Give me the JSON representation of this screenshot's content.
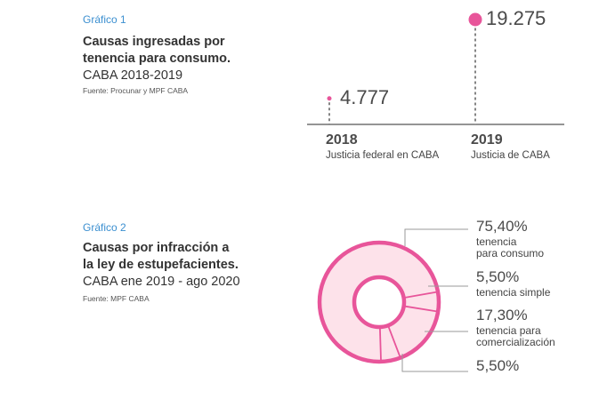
{
  "chart1": {
    "tag": "Gráfico 1",
    "title_lines": [
      "Causas ingresadas por",
      "tenencia para consumo."
    ],
    "subtitle": "CABA 2018-2019",
    "source": "Fuente: Procunar y MPF CABA"
  },
  "chart2": {
    "tag": "Gráfico 2",
    "title_lines": [
      "Causas por infracción a",
      "la ley de estupefacientes."
    ],
    "subtitle": "CABA ene 2019 - ago 2020",
    "source": "Fuente: MPF CABA",
    "slices": [
      {
        "pct": "75,40%",
        "label_lines": [
          "tenencia",
          "para consumo"
        ]
      },
      {
        "pct": "5,50%",
        "label_lines": [
          "tenencia simple"
        ]
      },
      {
        "pct": "17,30%",
        "label_lines": [
          "tenencia para",
          "comercialización"
        ]
      },
      {
        "pct": "5,50%",
        "label_lines": []
      }
    ]
  },
  "colors": {
    "accent": "#e8559a",
    "ring_fill": "#fde2ea",
    "axis": "#555555",
    "tag_blue": "#3b8fd0"
  },
  "chart_data": [
    {
      "type": "scatter",
      "title": "Causas ingresadas por tenencia para consumo.",
      "subtitle": "CABA 2018-2019",
      "categories": [
        "2018",
        "2019"
      ],
      "category_labels": [
        "Justicia federal en CABA",
        "Justicia de CABA"
      ],
      "values": [
        4777,
        19275
      ],
      "value_labels": [
        "4.777",
        "19.275"
      ],
      "ylim": [
        0,
        19275
      ],
      "grid": false
    },
    {
      "type": "pie",
      "title": "Causas por infracción a la ley de estupefacientes.",
      "subtitle": "CABA ene 2019 - ago 2020",
      "categories": [
        "tenencia para consumo",
        "tenencia simple",
        "tenencia para comercialización",
        ""
      ],
      "values": [
        75.4,
        5.5,
        17.3,
        5.5
      ],
      "value_labels": [
        "75,40%",
        "5,50%",
        "17,30%",
        "5,50%"
      ],
      "donut": true
    }
  ]
}
